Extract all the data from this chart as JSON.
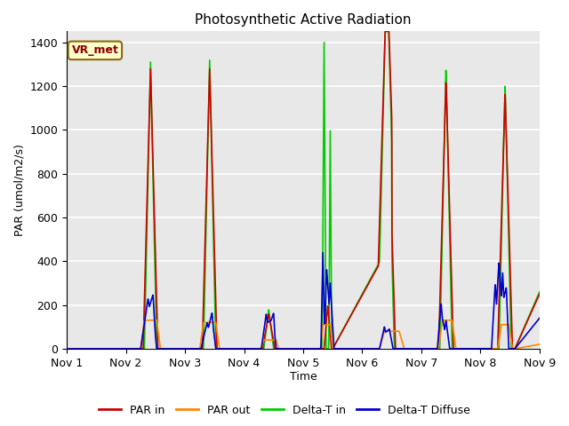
{
  "title": "Photosynthetic Active Radiation",
  "ylabel": "PAR (umol/m2/s)",
  "xlabel": "Time",
  "annotation": "VR_met",
  "ylim": [
    0,
    1450
  ],
  "xlim": [
    0,
    192
  ],
  "xtick_positions": [
    0,
    24,
    48,
    72,
    96,
    120,
    144,
    168,
    192
  ],
  "xtick_labels": [
    "Nov 1",
    "Nov 2",
    "Nov 3",
    "Nov 4",
    "Nov 5",
    "Nov 6",
    "Nov 7",
    "Nov 8",
    "Nov 9"
  ],
  "ytick_positions": [
    0,
    200,
    400,
    600,
    800,
    1000,
    1200,
    1400
  ],
  "colors": {
    "PAR_in": "#cc0000",
    "PAR_out": "#ff8800",
    "Delta_T_in": "#00cc00",
    "Delta_T_diffuse": "#0000cc"
  },
  "legend_labels": [
    "PAR in",
    "PAR out",
    "Delta-T in",
    "Delta-T Diffuse"
  ],
  "plot_bg_color": "#e8e8e8",
  "grid_color": "#ffffff",
  "annotation_bg": "#ffffcc",
  "annotation_edge": "#8B6914",
  "annotation_text_color": "#8B0000"
}
